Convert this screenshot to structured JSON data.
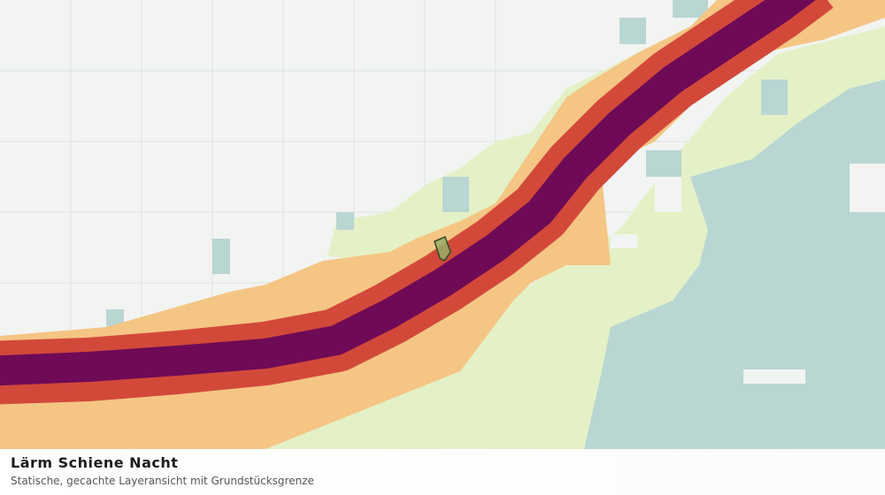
{
  "header": {
    "title": "Lärm Schiene Nacht",
    "subtitle": "Statische, gecachte Layeransicht mit Grundstücksgrenze"
  }
}
